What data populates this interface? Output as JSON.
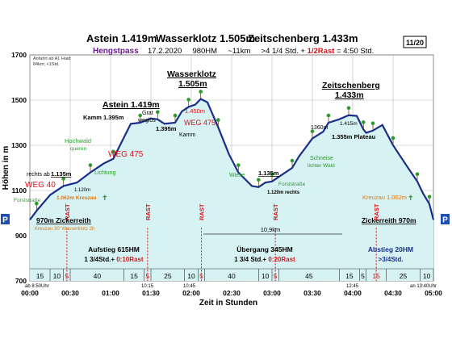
{
  "header": {
    "title": "Astein 1.419m  Wasserklotz 1.505m  Zeitschenberg 1.433m",
    "title_parts": [
      "Astein 1.419m",
      "Wasserklotz 1.505m",
      "Zeitschenberg 1.433m"
    ],
    "subtitle_route": "Hengstpass",
    "subtitle_rest": "17.2.2020     980HM     ~11km     >4 1/4 Std. + 1/2Rast = 4:50 Std.",
    "page_badge": "11/20",
    "corner_note_1": "Anfahrt ab A1 Haid:",
    "corner_note_2": "84km;  <1Std."
  },
  "colors": {
    "profile_line": "#1a2f8a",
    "profile_fill": "#d6f2f2",
    "grid": "#b8b8b8",
    "rast": "#d9141b",
    "green_text": "#2e9a2e",
    "orange_text": "#e07a10",
    "title_purple": "#6a1a8a",
    "parking_bg": "#1f4fb0"
  },
  "chart_data": {
    "type": "area",
    "xlabel": "Zeit in Stunden",
    "ylabel": "Höhen in m",
    "x_unit": "minutes",
    "xlim": [
      0,
      300
    ],
    "ylim": [
      700,
      1700
    ],
    "x_ticks": [
      0,
      30,
      60,
      90,
      120,
      150,
      180,
      210,
      240,
      270,
      300
    ],
    "x_tick_labels": [
      "00:00",
      "00:30",
      "01:00",
      "01:30",
      "02:00",
      "02:30",
      "03:00",
      "03:30",
      "04:00",
      "04:30",
      "05:00"
    ],
    "y_ticks": [
      700,
      900,
      1100,
      1300,
      1500,
      1700
    ],
    "x": [
      0,
      5,
      15,
      25,
      35,
      45,
      55,
      62,
      75,
      82,
      90,
      95,
      100,
      108,
      113,
      118,
      123,
      127,
      132,
      140,
      148,
      155,
      165,
      170,
      175,
      180,
      185,
      195,
      200,
      210,
      218,
      222,
      230,
      237,
      243,
      248,
      250,
      255,
      262,
      270,
      280,
      288,
      292,
      297,
      300
    ],
    "y": [
      970,
      1010,
      1080,
      1120,
      1135,
      1180,
      1220,
      1240,
      1395,
      1400,
      1419,
      1415,
      1395,
      1400,
      1450,
      1470,
      1480,
      1505,
      1490,
      1380,
      1260,
      1180,
      1120,
      1115,
      1135,
      1140,
      1160,
      1200,
      1250,
      1330,
      1360,
      1400,
      1415,
      1433,
      1430,
      1370,
      1355,
      1365,
      1390,
      1300,
      1210,
      1140,
      1090,
      1040,
      970
    ],
    "segments": {
      "minutes": [
        "15",
        "10",
        "5",
        "40",
        "15",
        "5",
        "25",
        "10",
        "5",
        "40",
        "10",
        "5",
        "45",
        "15",
        "5",
        "15",
        "25",
        "10"
      ],
      "rast_labels": [
        "RAST",
        "RAST",
        "RAST",
        "RAST",
        "RAST"
      ],
      "rast_minutes": [
        5,
        5,
        10,
        5,
        5
      ]
    },
    "legs": [
      {
        "title": "Aufstieg 615HM",
        "detail": "1 3/4Std.+ 0:10Rast"
      },
      {
        "title": "Übergang 345HM",
        "detail": "1 3/4 Std.+ 0:20Rast"
      },
      {
        "title": "Abstieg 20HM",
        "detail": ">3/4Std."
      }
    ],
    "distance_label": "10,9km",
    "times": {
      "start": "ab 8:50Uhr",
      "t1": "10:15",
      "t2": "10:45",
      "t3": "12:45",
      "end": "an 13:40Uhr"
    },
    "annotations": {
      "start_place": "970m Zickerreith",
      "start_sub": "Kreuzau 30' Wasserklotz 2h",
      "end_place": "Zickerreith 970m",
      "forst1": "Forststraße",
      "weg40": "WEG 40",
      "rechts_ab": "rechts ab",
      "h1135a": "1.135m",
      "h1120a": "1.120m",
      "kreuzau_left": "1.062m Kreuzau",
      "hochwald": "Hochwald",
      "queren": "queren",
      "lichtung": "Lichtung",
      "weg475a": "WEG 475",
      "kamm1395": "Kamm 1.395m",
      "astein": "Astein 1.419m",
      "grat": "Grat",
      "wegelos": "weglos",
      "h1395": "1.395m",
      "h1450": "1.450m",
      "weg475b": "WEG 475",
      "kamm": "Kamm",
      "wasserklotz1": "Wasserklotz",
      "wasserklotz2": "1.505m",
      "wiese": "Wiese",
      "h1135b": "1.135m",
      "forst2": "Forststraße",
      "h1120b": "1.120m rechts",
      "schneise1": "Schneise",
      "schneise2": "lichter Wald",
      "h1360": "1360m",
      "h1415": "1.415m",
      "plateau": "1.355m Plateau",
      "zeit1": "Zeitschenberg",
      "zeit2": "1.433m",
      "kreuzau_right": "Kreuzau 1.062m",
      "parking": "P"
    }
  }
}
